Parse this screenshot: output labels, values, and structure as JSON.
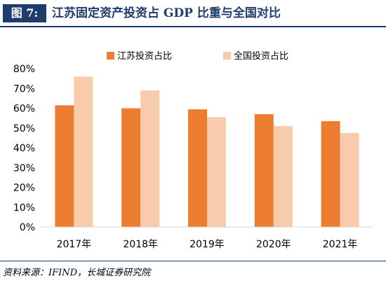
{
  "figure_label": "图 7:",
  "figure_title": "江苏固定资产投资占 GDP 比重与全国对比",
  "source": "资料来源：IFIND，长城证券研究院",
  "colors": {
    "jiangsu": "#ed7d31",
    "national": "#f8cbad",
    "title_blue": "#1f3c6e",
    "axis": "#d9d9d9"
  },
  "chart_data": {
    "type": "bar",
    "categories": [
      "2017年",
      "2018年",
      "2019年",
      "2020年",
      "2021年"
    ],
    "series": [
      {
        "name": "江苏投资占比",
        "values": [
          61.5,
          60.0,
          59.5,
          57.0,
          53.5
        ]
      },
      {
        "name": "全国投资占比",
        "values": [
          76.0,
          69.0,
          55.5,
          51.0,
          47.5
        ]
      }
    ],
    "ylim": [
      0,
      80
    ],
    "yticks": [
      "0%",
      "10%",
      "20%",
      "30%",
      "40%",
      "50%",
      "60%",
      "70%",
      "80%"
    ],
    "legend_position": "top-center",
    "grid": false,
    "title": "",
    "xlabel": "",
    "ylabel": ""
  }
}
